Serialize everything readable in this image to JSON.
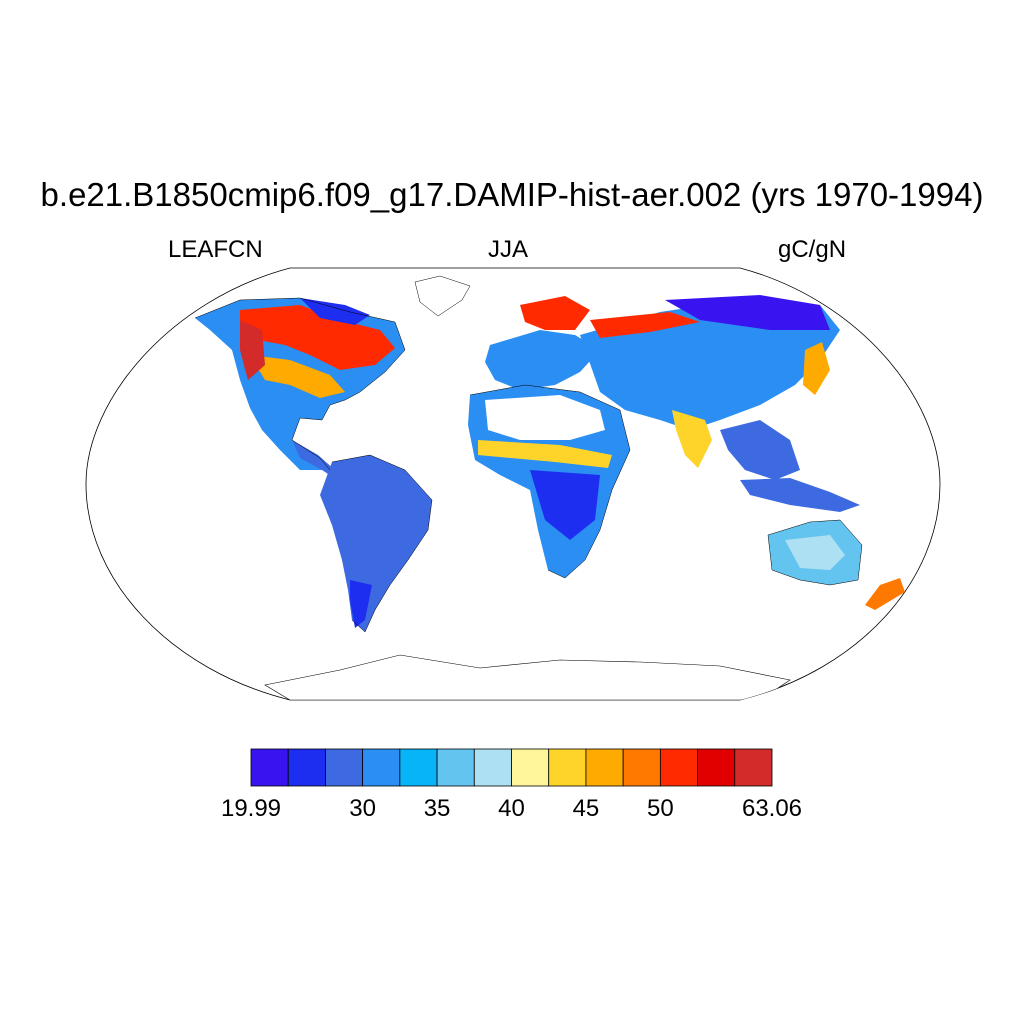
{
  "title": "b.e21.B1850cmip6.f09_g17.DAMIP-hist-aer.002 (yrs 1970-1994)",
  "left_string": "LEAFCN",
  "center_string": "JJA",
  "right_string": "gC/gN",
  "colorbar": {
    "colors": [
      "#3a14f0",
      "#1e2ef0",
      "#3d6ae0",
      "#2a8ef2",
      "#08b4f8",
      "#64c4f0",
      "#ade0f2",
      "#fff59a",
      "#ffd42a",
      "#ffaa00",
      "#ff7800",
      "#ff2a00",
      "#e00000",
      "#d32a2a"
    ],
    "labels": [
      "19.99",
      "30",
      "35",
      "40",
      "45",
      "50",
      "63.06"
    ],
    "label_boundary_index": [
      0,
      3,
      5,
      7,
      9,
      11,
      14
    ]
  }
}
